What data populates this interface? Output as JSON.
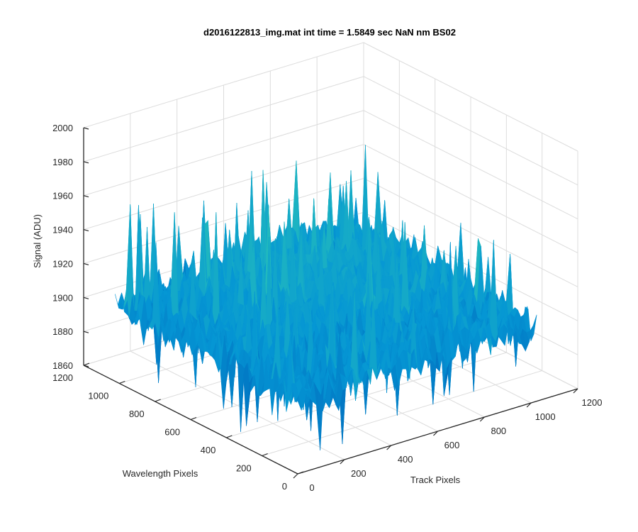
{
  "chart_data": {
    "type": "surface",
    "title": "d2016122813_img.mat int time = 1.5849 sec  NaN nm BS02",
    "xlabel": "Track Pixels",
    "ylabel": "Wavelength Pixels",
    "zlabel": "Signal (ADU)",
    "xlim": [
      0,
      1200
    ],
    "ylim": [
      0,
      1200
    ],
    "zlim": [
      1860,
      2000
    ],
    "x_ticks": [
      "0",
      "200",
      "400",
      "600",
      "800",
      "1000",
      "1200"
    ],
    "y_ticks": [
      "0",
      "200",
      "400",
      "600",
      "800",
      "1000",
      "1200"
    ],
    "z_ticks": [
      "1860",
      "1880",
      "1900",
      "1920",
      "1940",
      "1960",
      "1980",
      "2000"
    ],
    "grid": true,
    "colormap": "parula",
    "surface_extent": {
      "x": [
        0,
        1024
      ],
      "y": [
        0,
        1024
      ]
    },
    "mean_signal": 1905,
    "noise_range": [
      1862,
      1995
    ],
    "colors": {
      "low": "#0072bd",
      "mid": "#1ab2c8",
      "high": "#e8c33a",
      "axis": "#262626",
      "grid": "#dcdcdc"
    }
  }
}
